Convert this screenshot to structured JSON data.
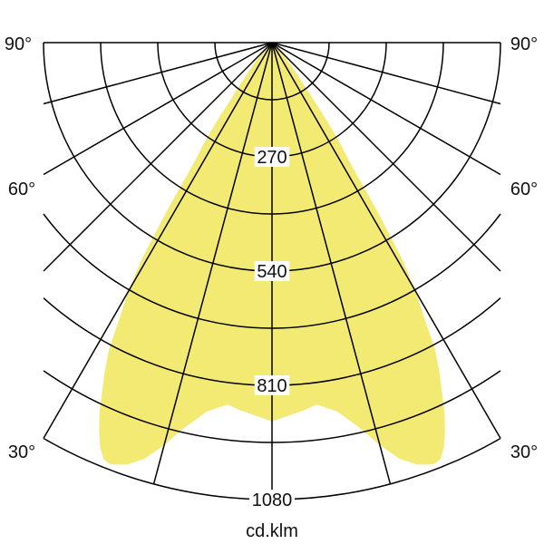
{
  "chart_data": {
    "type": "polar",
    "unit_label": "cd.klm",
    "angle_labels": {
      "left": [
        "90°",
        "60°",
        "30°"
      ],
      "right": [
        "90°",
        "60°",
        "30°"
      ]
    },
    "angle_label_values": [
      90,
      60,
      30
    ],
    "radial_tick_labels": [
      "270",
      "540",
      "810",
      "1080"
    ],
    "radial_tick_values": [
      270,
      540,
      810,
      1080
    ],
    "radial_grid_step": 135,
    "radial_max": 1080,
    "angular_grid_step_deg": 15,
    "angle_range_deg": [
      -90,
      90
    ],
    "fill_color": "#f3ea74",
    "grid_color": "#000000",
    "symmetric": true,
    "series": [
      {
        "angles_deg": [
          0,
          5,
          7,
          10,
          13,
          15,
          17,
          19,
          21,
          22,
          23,
          24,
          25,
          26,
          27,
          28,
          29,
          30,
          31,
          32,
          33,
          34,
          35,
          37,
          40,
          45,
          50,
          90
        ],
        "intensity": [
          895,
          872,
          862,
          885,
          937,
          985,
          1028,
          1055,
          1068,
          1062,
          1040,
          1005,
          965,
          915,
          870,
          820,
          740,
          680,
          600,
          470,
          340,
          290,
          230,
          130,
          70,
          25,
          5,
          0
        ]
      }
    ]
  }
}
